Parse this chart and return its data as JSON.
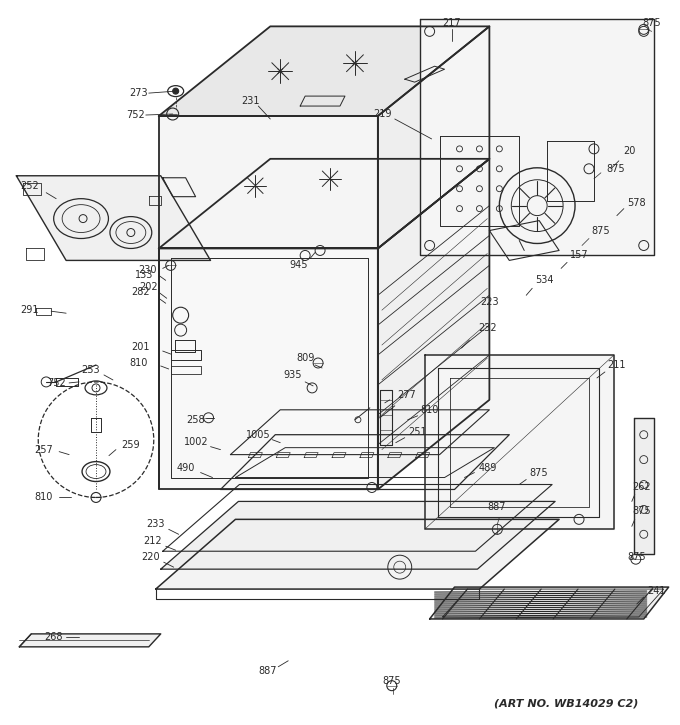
{
  "art_no": "(ART NO. WB14029 C2)",
  "bg_color": "#ffffff",
  "line_color": "#2a2a2a",
  "fig_width": 6.8,
  "fig_height": 7.25,
  "dpi": 100
}
